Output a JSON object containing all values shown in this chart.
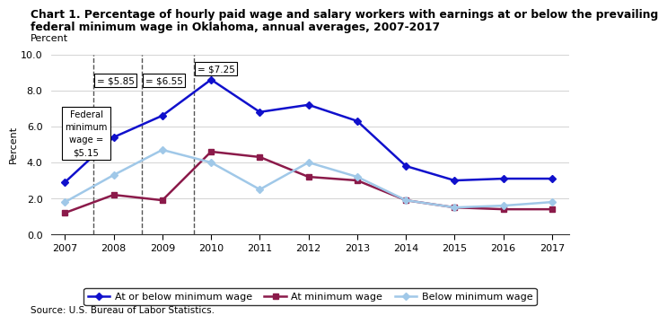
{
  "title_line1": "Chart 1. Percentage of hourly paid wage and salary workers with earnings at or below the prevailing",
  "title_line2": "federal minimum wage in Oklahoma, annual averages, 2007-2017",
  "ylabel": "Percent",
  "source": "Source: U.S. Bureau of Labor Statistics.",
  "years": [
    2007,
    2008,
    2009,
    2010,
    2011,
    2012,
    2013,
    2014,
    2015,
    2016,
    2017
  ],
  "at_or_below": [
    2.9,
    5.4,
    6.6,
    8.6,
    6.8,
    7.2,
    6.3,
    3.8,
    3.0,
    3.1,
    3.1
  ],
  "at_minimum": [
    1.2,
    2.2,
    1.9,
    4.6,
    4.3,
    3.2,
    3.0,
    1.9,
    1.5,
    1.4,
    1.4
  ],
  "below_minimum": [
    1.8,
    3.3,
    4.7,
    4.0,
    2.5,
    4.0,
    3.2,
    1.9,
    1.5,
    1.6,
    1.8
  ],
  "color_at_or_below": "#1010cc",
  "color_at_minimum": "#8B1A4A",
  "color_below_minimum": "#a0c8e8",
  "vline_x": [
    2007.58,
    2008.58,
    2009.65
  ],
  "ylim": [
    0.0,
    10.0
  ],
  "yticks": [
    0.0,
    2.0,
    4.0,
    6.0,
    8.0,
    10.0
  ],
  "legend_labels": [
    "At or below minimum wage",
    "At minimum wage",
    "Below minimum wage"
  ]
}
